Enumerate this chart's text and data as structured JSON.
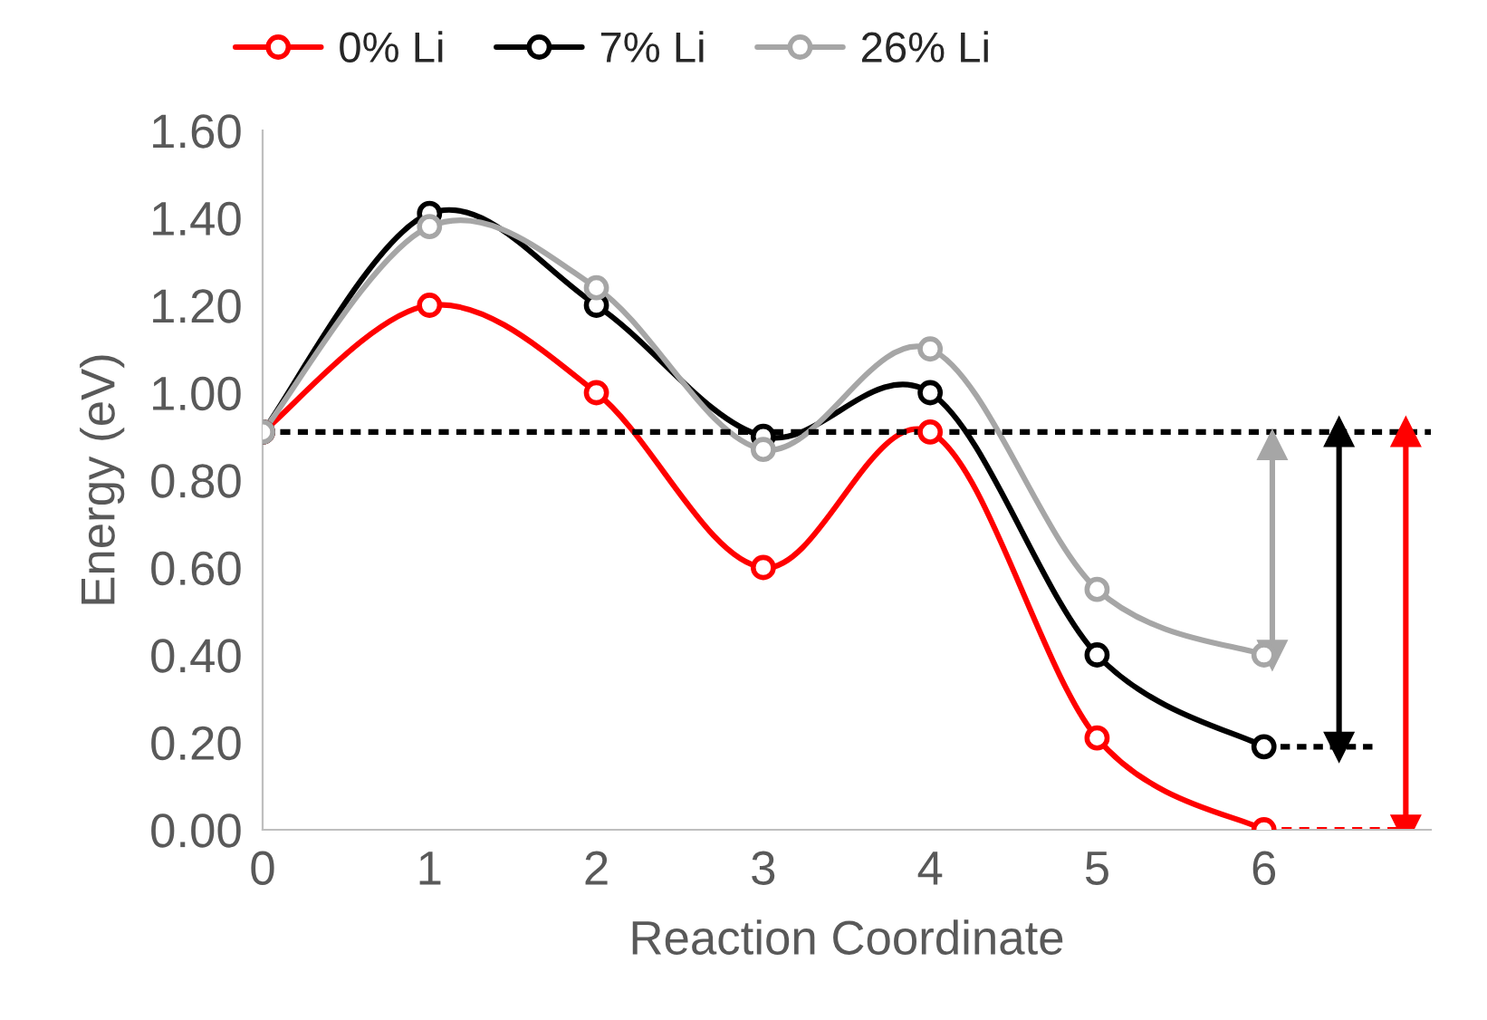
{
  "chart_data": {
    "type": "line",
    "xlabel": "Reaction Coordinate",
    "ylabel": "Energy (eV)",
    "x": [
      0,
      1,
      2,
      3,
      4,
      5,
      6
    ],
    "series": [
      {
        "name": "0% Li",
        "color": "#ff0000",
        "values": [
          0.91,
          1.2,
          1.0,
          0.6,
          0.91,
          0.21,
          0.0
        ]
      },
      {
        "name": "7% Li",
        "color": "#000000",
        "values": [
          0.91,
          1.41,
          1.2,
          0.9,
          1.0,
          0.4,
          0.19
        ]
      },
      {
        "name": "26% Li",
        "color": "#a6a6a6",
        "values": [
          0.91,
          1.38,
          1.24,
          0.87,
          1.1,
          0.55,
          0.4
        ]
      },
      {
        "type": "line",
        "color": "#ff0000",
        "x": [
          6,
          6.8
        ],
        "values": [
          0.0,
          0.0
        ],
        "line_style": "dashed",
        "marker": "none"
      },
      {
        "type": "line",
        "color": "#000000",
        "x": [
          6,
          6.65
        ],
        "values": [
          0.19,
          0.19
        ],
        "line_style": "dashed",
        "marker": "none"
      },
      {
        "type": "line",
        "color": "#a6a6a6",
        "x": [
          6.05,
          6.05
        ],
        "values": [
          0.88,
          0.4
        ],
        "line_style": "solid",
        "marker": "triangle"
      },
      {
        "type": "line",
        "color": "#000000",
        "x": [
          6.45,
          6.45
        ],
        "values": [
          0.91,
          0.19
        ],
        "line_style": "solid",
        "marker": "triangle"
      },
      {
        "type": "line",
        "color": "#ff0000",
        "x": [
          6.85,
          6.85
        ],
        "values": [
          0.91,
          0.0
        ],
        "line_style": "solid",
        "marker": "triangle"
      }
    ],
    "ref_lines": [
      {
        "axis": "y",
        "value": 0.91,
        "color": "#000000",
        "line_style": "dashed"
      }
    ],
    "xlim": [
      0,
      7
    ],
    "xticks": [
      0,
      1,
      2,
      3,
      4,
      5,
      6
    ],
    "ylim": [
      0,
      1.6
    ],
    "yticks": [
      {
        "value": 0,
        "label": "0.00"
      },
      {
        "value": 0.2,
        "label": "0.20"
      },
      {
        "value": 0.4,
        "label": "0.40"
      },
      {
        "value": 0.6,
        "label": "0.60"
      },
      {
        "value": 0.8,
        "label": "0.80"
      },
      {
        "value": 1.0,
        "label": "1.00"
      },
      {
        "value": 1.2,
        "label": "1.20"
      },
      {
        "value": 1.4,
        "label": "1.40"
      },
      {
        "value": 1.6,
        "label": "1.60"
      }
    ],
    "grid": false,
    "legend": "top",
    "marker": "circle",
    "line_style": "solid"
  }
}
